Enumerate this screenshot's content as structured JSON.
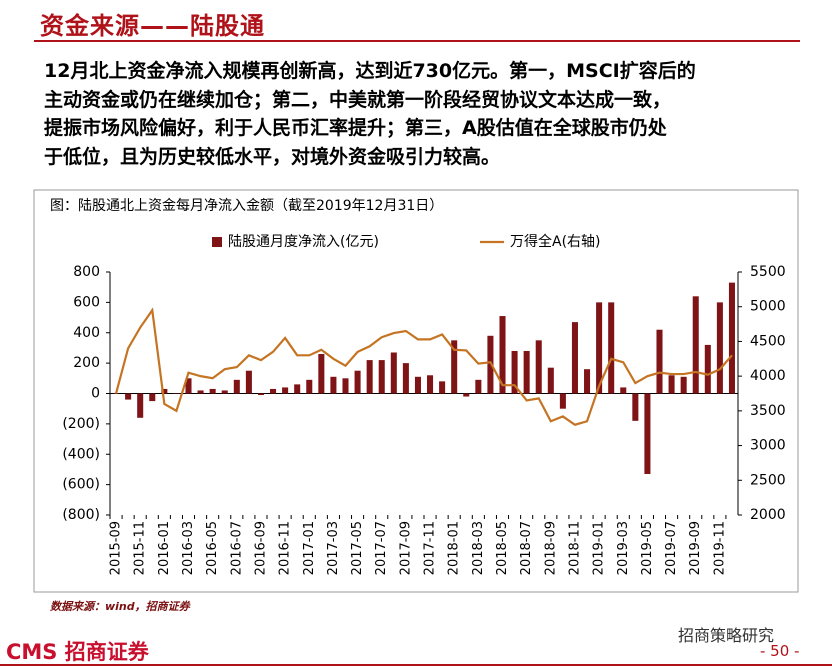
{
  "header": {
    "title": "资金来源——陆股通"
  },
  "paragraph": [
    "12月北上资金净流入规模再创新高，达到近730亿元。第一，MSCI扩容后的",
    "主动资金或仍在继续加仓；第二，中美就第一阶段经贸协议文本达成一致，",
    "提振市场风险偏好，利于人民币汇率提升；第三，A股估值在全球股市仍处",
    "于低位，且为历史较低水平，对境外资金吸引力较高。"
  ],
  "chart_data": {
    "type": "bar_line",
    "title": "图：陆股通北上资金每月净流入金额（截至2019年12月31日）",
    "categories": [
      "2015-09",
      null,
      "2015-11",
      null,
      "2016-01",
      null,
      "2016-03",
      null,
      "2016-05",
      null,
      "2016-07",
      null,
      "2016-09",
      null,
      "2016-11",
      null,
      "2017-01",
      null,
      "2017-03",
      null,
      "2017-05",
      null,
      "2017-07",
      null,
      "2017-09",
      null,
      "2017-11",
      null,
      "2018-01",
      null,
      "2018-03",
      null,
      "2018-05",
      null,
      "2018-07",
      null,
      "2018-09",
      null,
      "2018-11",
      null,
      "2019-01",
      null,
      "2019-03",
      null,
      "2019-05",
      null,
      "2019-07",
      null,
      "2019-09",
      null,
      "2019-11",
      null
    ],
    "series": [
      {
        "name": "陆股通月度净流入(亿元)",
        "type": "bar",
        "color": "#7f1416",
        "axis": "y",
        "values": [
          0,
          -40,
          -160,
          -50,
          30,
          0,
          100,
          20,
          30,
          20,
          90,
          150,
          -10,
          30,
          40,
          60,
          90,
          260,
          110,
          100,
          150,
          220,
          220,
          270,
          200,
          110,
          120,
          80,
          350,
          -20,
          90,
          380,
          510,
          280,
          280,
          350,
          170,
          -100,
          470,
          160,
          600,
          600,
          40,
          -180,
          -530,
          420,
          120,
          110,
          640,
          320,
          600,
          730
        ]
      },
      {
        "name": "万得全A(右轴)",
        "type": "line",
        "color": "#c47422",
        "axis": "y2",
        "values": [
          3750,
          4400,
          4700,
          4950,
          3600,
          3500,
          4050,
          4000,
          3970,
          4100,
          4130,
          4300,
          4230,
          4350,
          4550,
          4300,
          4300,
          4380,
          4250,
          4150,
          4350,
          4430,
          4560,
          4620,
          4650,
          4530,
          4530,
          4600,
          4380,
          4370,
          4180,
          4200,
          3870,
          3870,
          3650,
          3680,
          3350,
          3420,
          3300,
          3350,
          3860,
          4250,
          4200,
          3900,
          4000,
          4050,
          4030,
          4030,
          4060,
          4020,
          4100,
          4300
        ]
      }
    ],
    "ylim": [
      -800,
      800
    ],
    "yticks": [
      {
        "value": -800,
        "label": "(800)"
      },
      {
        "value": -600,
        "label": "(600)"
      },
      {
        "value": -400,
        "label": "(400)"
      },
      {
        "value": -200,
        "label": "(200)"
      },
      0,
      200,
      400,
      600,
      800
    ],
    "y2lim": [
      2000,
      5500
    ],
    "y2ticks": [
      2000,
      2500,
      3000,
      3500,
      4000,
      4500,
      5000,
      5500
    ],
    "negative_label_color": "#c00000",
    "source": "数据来源：wind，招商证券"
  },
  "footer": {
    "logo": "CMS 招商证券",
    "wechat": "招商策略研究",
    "page": "- 50 -"
  }
}
